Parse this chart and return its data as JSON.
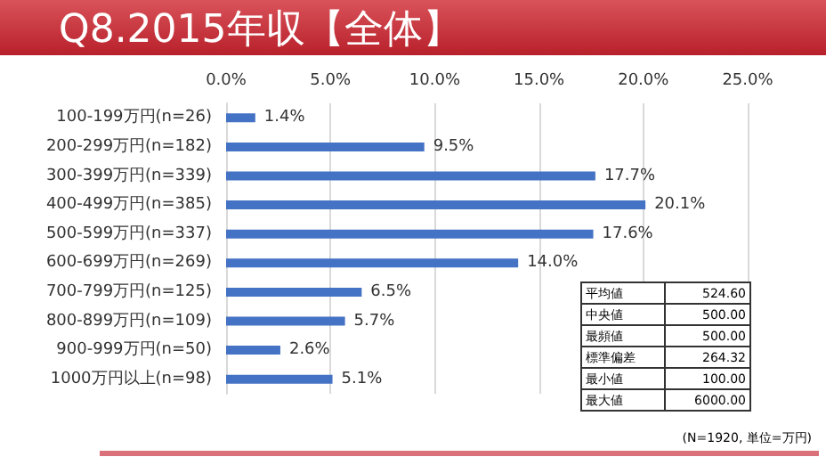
{
  "chart_data": {
    "type": "bar",
    "orientation": "horizontal",
    "title": "Q8.2015年収【全体】",
    "categories": [
      "100-199万円(n=26)",
      "200-299万円(n=182)",
      "300-399万円(n=339)",
      "400-499万円(n=385)",
      "500-599万円(n=337)",
      "600-699万円(n=269)",
      "700-799万円(n=125)",
      "800-899万円(n=109)",
      "900-999万円(n=50)",
      "1000万円以上(n=98)"
    ],
    "values": [
      1.4,
      9.5,
      17.7,
      20.1,
      17.6,
      14.0,
      6.5,
      5.7,
      2.6,
      5.1
    ],
    "value_labels": [
      "1.4%",
      "9.5%",
      "17.7%",
      "20.1%",
      "17.6%",
      "14.0%",
      "6.5%",
      "5.7%",
      "2.6%",
      "5.1%"
    ],
    "color": "#4472c4",
    "xlim": [
      0,
      25
    ],
    "xticks": [
      {
        "value": 0,
        "label": "0.0%"
      },
      {
        "value": 5,
        "label": "5.0%"
      },
      {
        "value": 10,
        "label": "10.0%"
      },
      {
        "value": 15,
        "label": "15.0%"
      },
      {
        "value": 20,
        "label": "20.0%"
      },
      {
        "value": 25,
        "label": "25.0%"
      }
    ],
    "grid": "x",
    "annotations": [
      "平均値",
      "524.60",
      "中央値",
      "500.00",
      "最頻値",
      "500.00",
      "標準偏差",
      "264.32",
      "最小値",
      "100.00",
      "最大値",
      "6000.00",
      "(N=1920, 単位=万円)"
    ]
  }
}
